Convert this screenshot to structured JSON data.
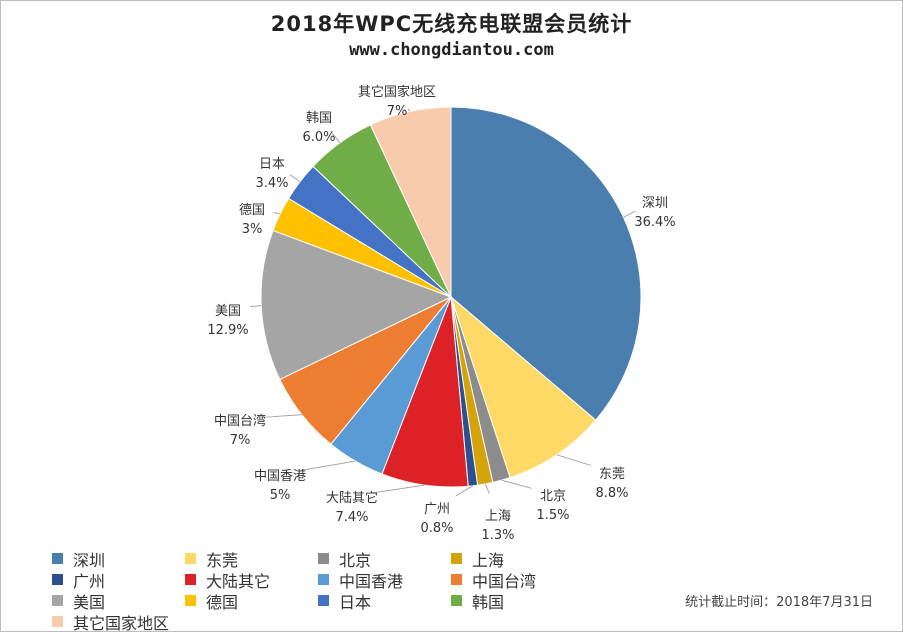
{
  "title": "2018年WPC无线充电联盟会员统计",
  "subtitle": "www.chongdiantou.com",
  "footnote": "统计截止时间：2018年7月31日",
  "chart_data": {
    "type": "pie",
    "start_angle_deg": 0,
    "direction": "clockwise",
    "legend_position": "bottom-left",
    "slices": [
      {
        "label": "深圳",
        "value": 36.4,
        "value_text": "36.4%",
        "color": "#4a7eaf"
      },
      {
        "label": "东莞",
        "value": 8.8,
        "value_text": "8.8%",
        "color": "#ffd966"
      },
      {
        "label": "北京",
        "value": 1.5,
        "value_text": "1.5%",
        "color": "#8c8c8c"
      },
      {
        "label": "上海",
        "value": 1.3,
        "value_text": "1.3%",
        "color": "#d4a20a"
      },
      {
        "label": "广州",
        "value": 0.8,
        "value_text": "0.8%",
        "color": "#2e4f8e"
      },
      {
        "label": "大陆其它",
        "value": 7.4,
        "value_text": "7.4%",
        "color": "#dc2127"
      },
      {
        "label": "中国香港",
        "value": 5,
        "value_text": "5%",
        "color": "#5b9bd5"
      },
      {
        "label": "中国台湾",
        "value": 7,
        "value_text": "7%",
        "color": "#ed7d31"
      },
      {
        "label": "美国",
        "value": 12.9,
        "value_text": "12.9%",
        "color": "#a5a5a5"
      },
      {
        "label": "德国",
        "value": 3,
        "value_text": "3%",
        "color": "#ffc000"
      },
      {
        "label": "日本",
        "value": 3.4,
        "value_text": "3.4%",
        "color": "#4472c4"
      },
      {
        "label": "韩国",
        "value": 6.0,
        "value_text": "6.0%",
        "color": "#70ad47"
      },
      {
        "label": "其它国家地区",
        "value": 7,
        "value_text": "7%",
        "color": "#f8cbad"
      }
    ]
  }
}
